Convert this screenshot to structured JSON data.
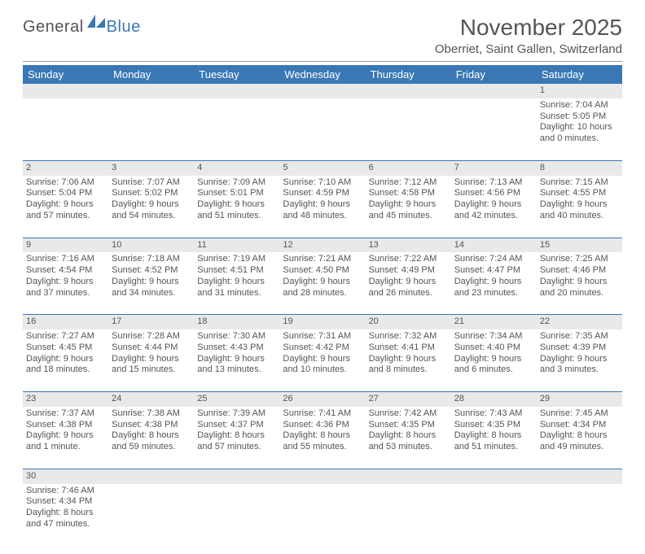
{
  "logo": {
    "text1": "General",
    "text2": "Blue",
    "color1": "#555555",
    "color2": "#3a78b5"
  },
  "title": "November 2025",
  "location": "Oberriet, Saint Gallen, Switzerland",
  "colors": {
    "header_bg": "#3a78b5",
    "header_fg": "#ffffff",
    "daynum_bg": "#e9e9e9",
    "row_sep": "#3a78b5",
    "text": "#555555"
  },
  "day_headers": [
    "Sunday",
    "Monday",
    "Tuesday",
    "Wednesday",
    "Thursday",
    "Friday",
    "Saturday"
  ],
  "days": {
    "1": {
      "sunrise": "7:04 AM",
      "sunset": "5:05 PM",
      "daylight": "10 hours and 0 minutes."
    },
    "2": {
      "sunrise": "7:06 AM",
      "sunset": "5:04 PM",
      "daylight": "9 hours and 57 minutes."
    },
    "3": {
      "sunrise": "7:07 AM",
      "sunset": "5:02 PM",
      "daylight": "9 hours and 54 minutes."
    },
    "4": {
      "sunrise": "7:09 AM",
      "sunset": "5:01 PM",
      "daylight": "9 hours and 51 minutes."
    },
    "5": {
      "sunrise": "7:10 AM",
      "sunset": "4:59 PM",
      "daylight": "9 hours and 48 minutes."
    },
    "6": {
      "sunrise": "7:12 AM",
      "sunset": "4:58 PM",
      "daylight": "9 hours and 45 minutes."
    },
    "7": {
      "sunrise": "7:13 AM",
      "sunset": "4:56 PM",
      "daylight": "9 hours and 42 minutes."
    },
    "8": {
      "sunrise": "7:15 AM",
      "sunset": "4:55 PM",
      "daylight": "9 hours and 40 minutes."
    },
    "9": {
      "sunrise": "7:16 AM",
      "sunset": "4:54 PM",
      "daylight": "9 hours and 37 minutes."
    },
    "10": {
      "sunrise": "7:18 AM",
      "sunset": "4:52 PM",
      "daylight": "9 hours and 34 minutes."
    },
    "11": {
      "sunrise": "7:19 AM",
      "sunset": "4:51 PM",
      "daylight": "9 hours and 31 minutes."
    },
    "12": {
      "sunrise": "7:21 AM",
      "sunset": "4:50 PM",
      "daylight": "9 hours and 28 minutes."
    },
    "13": {
      "sunrise": "7:22 AM",
      "sunset": "4:49 PM",
      "daylight": "9 hours and 26 minutes."
    },
    "14": {
      "sunrise": "7:24 AM",
      "sunset": "4:47 PM",
      "daylight": "9 hours and 23 minutes."
    },
    "15": {
      "sunrise": "7:25 AM",
      "sunset": "4:46 PM",
      "daylight": "9 hours and 20 minutes."
    },
    "16": {
      "sunrise": "7:27 AM",
      "sunset": "4:45 PM",
      "daylight": "9 hours and 18 minutes."
    },
    "17": {
      "sunrise": "7:28 AM",
      "sunset": "4:44 PM",
      "daylight": "9 hours and 15 minutes."
    },
    "18": {
      "sunrise": "7:30 AM",
      "sunset": "4:43 PM",
      "daylight": "9 hours and 13 minutes."
    },
    "19": {
      "sunrise": "7:31 AM",
      "sunset": "4:42 PM",
      "daylight": "9 hours and 10 minutes."
    },
    "20": {
      "sunrise": "7:32 AM",
      "sunset": "4:41 PM",
      "daylight": "9 hours and 8 minutes."
    },
    "21": {
      "sunrise": "7:34 AM",
      "sunset": "4:40 PM",
      "daylight": "9 hours and 6 minutes."
    },
    "22": {
      "sunrise": "7:35 AM",
      "sunset": "4:39 PM",
      "daylight": "9 hours and 3 minutes."
    },
    "23": {
      "sunrise": "7:37 AM",
      "sunset": "4:38 PM",
      "daylight": "9 hours and 1 minute."
    },
    "24": {
      "sunrise": "7:38 AM",
      "sunset": "4:38 PM",
      "daylight": "8 hours and 59 minutes."
    },
    "25": {
      "sunrise": "7:39 AM",
      "sunset": "4:37 PM",
      "daylight": "8 hours and 57 minutes."
    },
    "26": {
      "sunrise": "7:41 AM",
      "sunset": "4:36 PM",
      "daylight": "8 hours and 55 minutes."
    },
    "27": {
      "sunrise": "7:42 AM",
      "sunset": "4:35 PM",
      "daylight": "8 hours and 53 minutes."
    },
    "28": {
      "sunrise": "7:43 AM",
      "sunset": "4:35 PM",
      "daylight": "8 hours and 51 minutes."
    },
    "29": {
      "sunrise": "7:45 AM",
      "sunset": "4:34 PM",
      "daylight": "8 hours and 49 minutes."
    },
    "30": {
      "sunrise": "7:46 AM",
      "sunset": "4:34 PM",
      "daylight": "8 hours and 47 minutes."
    }
  },
  "grid": [
    [
      null,
      null,
      null,
      null,
      null,
      null,
      "1"
    ],
    [
      "2",
      "3",
      "4",
      "5",
      "6",
      "7",
      "8"
    ],
    [
      "9",
      "10",
      "11",
      "12",
      "13",
      "14",
      "15"
    ],
    [
      "16",
      "17",
      "18",
      "19",
      "20",
      "21",
      "22"
    ],
    [
      "23",
      "24",
      "25",
      "26",
      "27",
      "28",
      "29"
    ],
    [
      "30",
      null,
      null,
      null,
      null,
      null,
      null
    ]
  ],
  "labels": {
    "sunrise": "Sunrise:",
    "sunset": "Sunset:",
    "daylight": "Daylight:"
  }
}
